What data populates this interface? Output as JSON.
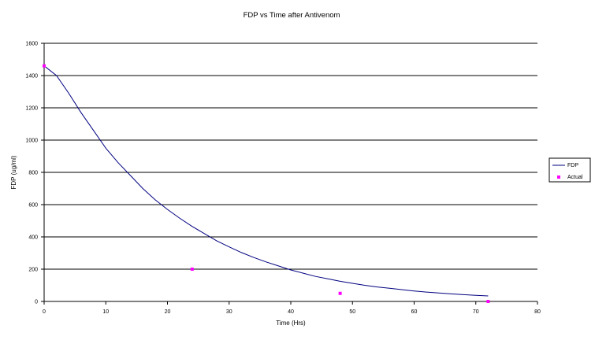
{
  "chart_data": {
    "type": "line",
    "title": "FDP vs Time after Antivenom",
    "xlabel": "Time (Hrs)",
    "ylabel": "FDP (ug/ml)",
    "xlim": [
      0,
      80
    ],
    "ylim": [
      0,
      1600
    ],
    "x_ticks": [
      0,
      10,
      20,
      30,
      40,
      50,
      60,
      70,
      80
    ],
    "y_ticks": [
      0,
      200,
      400,
      600,
      800,
      1000,
      1200,
      1400,
      1600
    ],
    "grid": "horizontal",
    "legend_position": "right",
    "series": [
      {
        "name": "FDP",
        "kind": "line",
        "color": "#000080",
        "x": [
          0,
          2,
          4,
          6,
          8,
          10,
          12,
          14,
          16,
          18,
          20,
          22,
          24,
          26,
          28,
          30,
          32,
          34,
          36,
          38,
          40,
          42,
          44,
          46,
          48,
          50,
          52,
          54,
          56,
          58,
          60,
          62,
          64,
          66,
          68,
          70,
          72
        ],
        "y": [
          1460,
          1400,
          1290,
          1170,
          1060,
          950,
          860,
          780,
          700,
          630,
          570,
          515,
          465,
          420,
          375,
          338,
          303,
          272,
          245,
          220,
          195,
          175,
          155,
          140,
          125,
          112,
          100,
          90,
          82,
          73,
          65,
          58,
          52,
          47,
          42,
          38,
          34
        ]
      },
      {
        "name": "Actual",
        "kind": "scatter",
        "color": "#ff00ff",
        "x": [
          0,
          24,
          48,
          72
        ],
        "y": [
          1460,
          200,
          50,
          0
        ]
      }
    ]
  }
}
